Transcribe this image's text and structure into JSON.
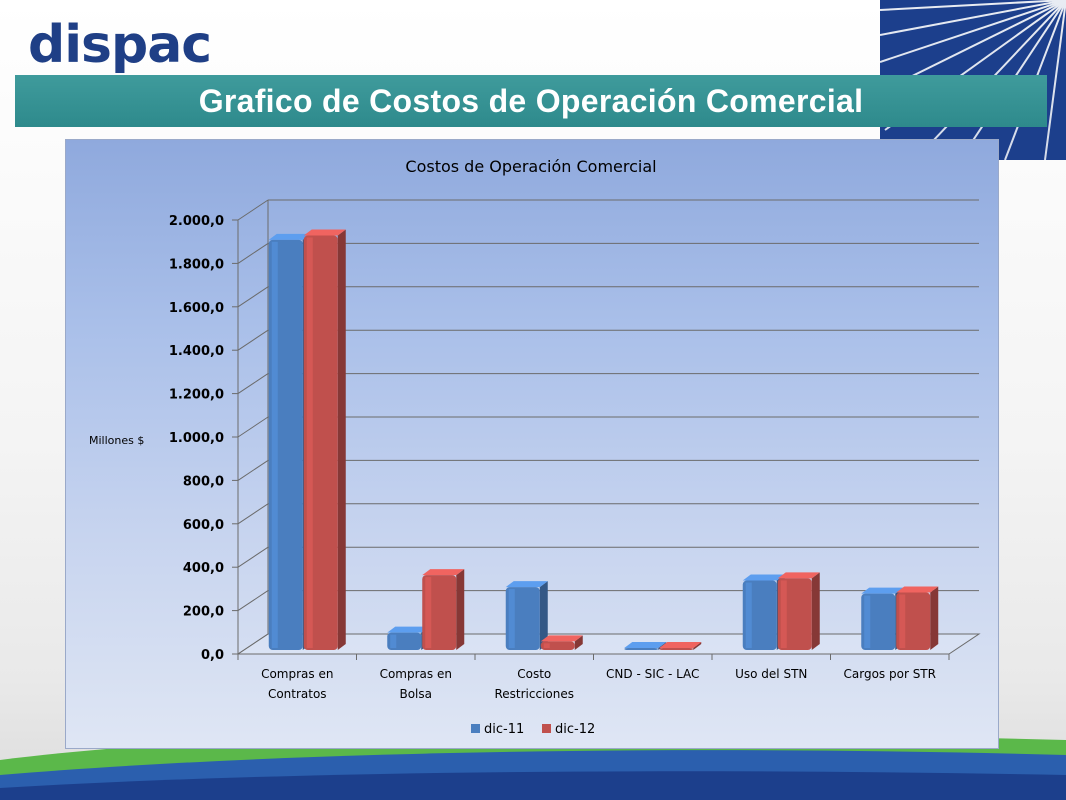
{
  "header": {
    "logo_text": "dispac",
    "logo_mark": "®",
    "title": "Grafico de Costos de Operación Comercial"
  },
  "colors": {
    "accent_bar": "#3a9596",
    "brand": "#1f3f86",
    "series_1": "#4a7ebf",
    "series_2": "#c0504d"
  },
  "chart_data": {
    "type": "bar",
    "title": "Costos de Operación Comercial",
    "ylabel": "Millones $",
    "xlabel": "",
    "ylim": [
      0,
      2000
    ],
    "yticks": [
      "0,0",
      "200,0",
      "400,0",
      "600,0",
      "800,0",
      "1.000,0",
      "1.200,0",
      "1.400,0",
      "1.600,0",
      "1.800,0",
      "2.000,0"
    ],
    "categories": [
      [
        "Compras en",
        "Contratos"
      ],
      [
        "Compras en",
        "Bolsa"
      ],
      [
        "Costo",
        "Restricciones"
      ],
      [
        "CND - SIC - LAC"
      ],
      [
        "Uso del STN"
      ],
      [
        "Cargos por STR"
      ]
    ],
    "series": [
      {
        "name": "dic-11",
        "color": "#4a7ebf",
        "values": [
          1890,
          80,
          290,
          0,
          320,
          260
        ]
      },
      {
        "name": "dic-12",
        "color": "#c0504d",
        "values": [
          1910,
          345,
          40,
          0,
          330,
          265
        ]
      }
    ],
    "grid": true,
    "legend": "bottom"
  }
}
